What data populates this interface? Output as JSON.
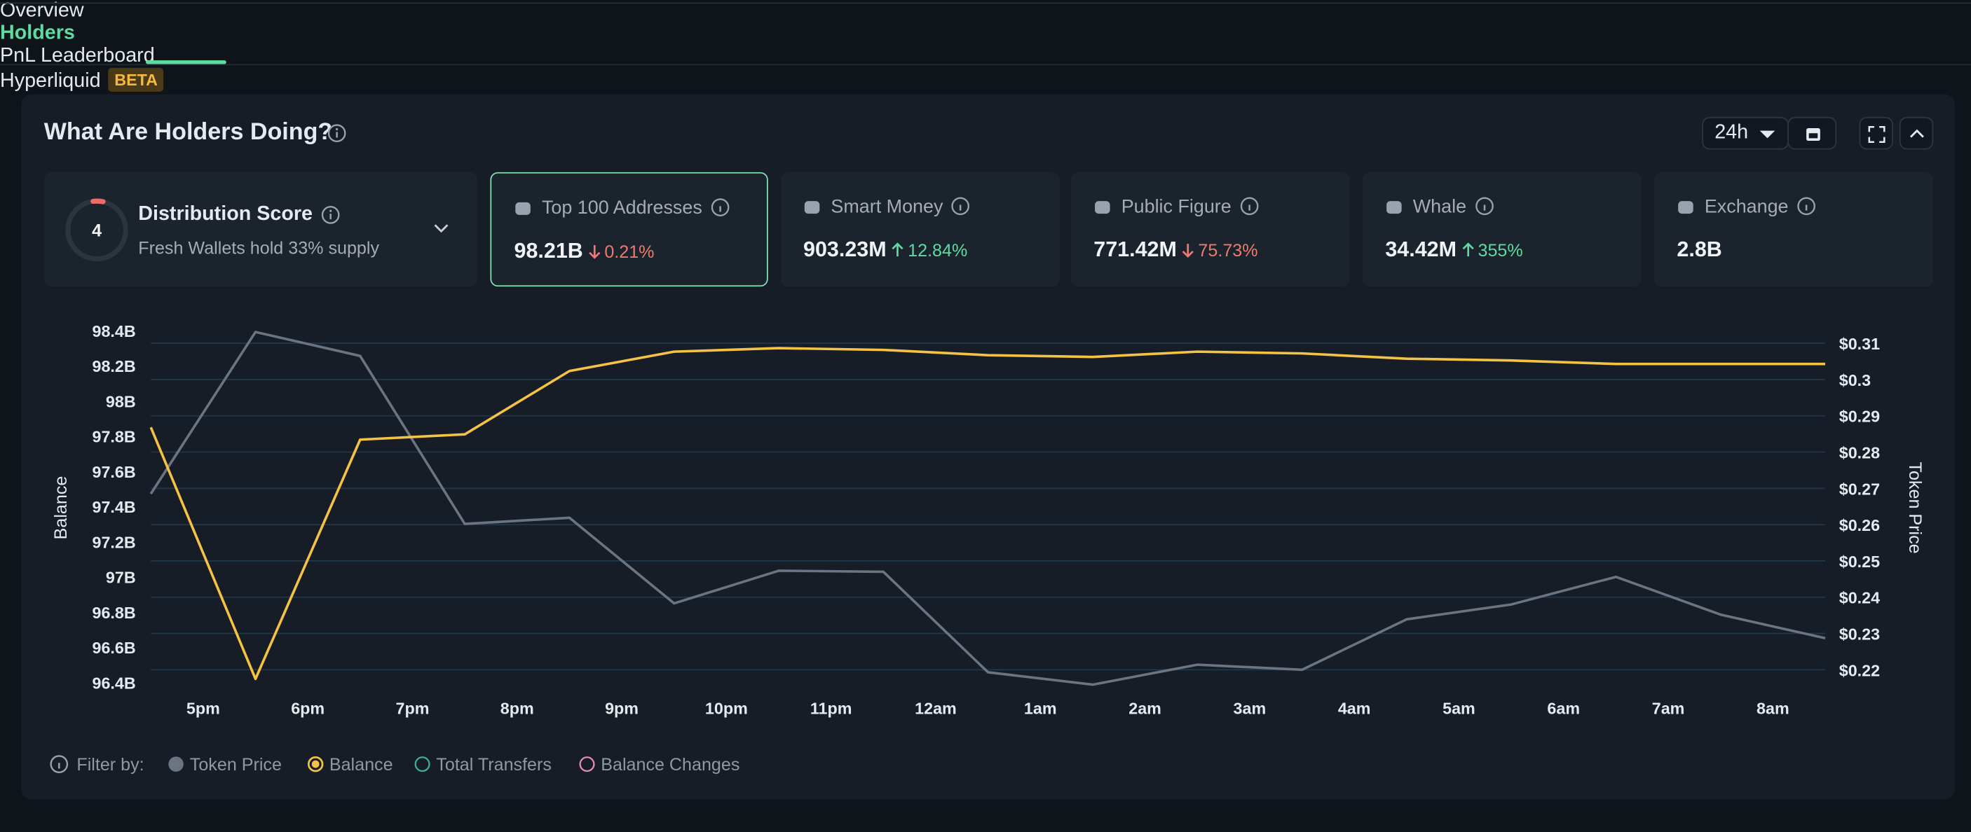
{
  "tabs": [
    "Overview",
    "Holders",
    "PnL Leaderboard",
    "Hyperliquid"
  ],
  "tab_badge": "BETA",
  "active_tab": 1,
  "panel_title": "What Are Holders Doing?",
  "timeframe": "24h",
  "distribution": {
    "score": 4,
    "title": "Distribution Score",
    "subtitle": "Fresh Wallets hold 33% supply"
  },
  "cards": [
    {
      "label": "Top 100 Addresses",
      "value": "98.21B",
      "change": "0.21%",
      "direction": "down",
      "selected": true
    },
    {
      "label": "Smart Money",
      "value": "903.23M",
      "change": "12.84%",
      "direction": "up"
    },
    {
      "label": "Public Figure",
      "value": "771.42M",
      "change": "75.73%",
      "direction": "down"
    },
    {
      "label": "Whale",
      "value": "34.42M",
      "change": "355%",
      "direction": "up"
    },
    {
      "label": "Exchange",
      "value": "2.8B"
    }
  ],
  "filter_label": "Filter by:",
  "chart_data": {
    "type": "line",
    "ylabel": "Balance",
    "y2label": "Token Price",
    "x": [
      0,
      1,
      2,
      3,
      4,
      5,
      6,
      7,
      8,
      9,
      10,
      11,
      12,
      13,
      14,
      15,
      16
    ],
    "xticks": [
      {
        "value": 0.5,
        "label": "5pm"
      },
      {
        "value": 1.5,
        "label": "6pm"
      },
      {
        "value": 2.5,
        "label": "7pm"
      },
      {
        "value": 3.5,
        "label": "8pm"
      },
      {
        "value": 4.5,
        "label": "9pm"
      },
      {
        "value": 5.5,
        "label": "10pm"
      },
      {
        "value": 6.5,
        "label": "11pm"
      },
      {
        "value": 7.5,
        "label": "12am"
      },
      {
        "value": 8.5,
        "label": "1am"
      },
      {
        "value": 9.5,
        "label": "2am"
      },
      {
        "value": 10.5,
        "label": "3am"
      },
      {
        "value": 11.5,
        "label": "4am"
      },
      {
        "value": 12.5,
        "label": "5am"
      },
      {
        "value": 13.5,
        "label": "6am"
      },
      {
        "value": 14.5,
        "label": "7am"
      },
      {
        "value": 15.5,
        "label": "8am"
      }
    ],
    "xlim": [
      0,
      16
    ],
    "ylim": [
      96.4,
      98.4
    ],
    "yticks": [
      {
        "value": 98.4,
        "label": "98.4B"
      },
      {
        "value": 98.2,
        "label": "98.2B"
      },
      {
        "value": 98,
        "label": "98B"
      },
      {
        "value": 97.8,
        "label": "97.8B"
      },
      {
        "value": 97.6,
        "label": "97.6B"
      },
      {
        "value": 97.4,
        "label": "97.4B"
      },
      {
        "value": 97.2,
        "label": "97.2B"
      },
      {
        "value": 97,
        "label": "97B"
      },
      {
        "value": 96.8,
        "label": "96.8B"
      },
      {
        "value": 96.6,
        "label": "96.6B"
      },
      {
        "value": 96.4,
        "label": "96.4B"
      }
    ],
    "y2lim": [
      0.2165,
      0.3135
    ],
    "y2ticks": [
      {
        "value": 0.31,
        "label": "$0.31"
      },
      {
        "value": 0.3,
        "label": "$0.3"
      },
      {
        "value": 0.29,
        "label": "$0.29"
      },
      {
        "value": 0.28,
        "label": "$0.28"
      },
      {
        "value": 0.27,
        "label": "$0.27"
      },
      {
        "value": 0.26,
        "label": "$0.26"
      },
      {
        "value": 0.25,
        "label": "$0.25"
      },
      {
        "value": 0.24,
        "label": "$0.24"
      },
      {
        "value": 0.23,
        "label": "$0.23"
      },
      {
        "value": 0.22,
        "label": "$0.22"
      }
    ],
    "grid": true,
    "series": [
      {
        "name": "Token Price",
        "color": "#6b7480",
        "axis": "y2",
        "values": [
          0.2685,
          0.3131,
          0.3065,
          0.2602,
          0.2619,
          0.2383,
          0.2473,
          0.247,
          0.2193,
          0.2159,
          0.2214,
          0.22,
          0.2339,
          0.238,
          0.2456,
          0.2352,
          0.2287
        ]
      },
      {
        "name": "Balance",
        "color": "#f5c344",
        "values": [
          97.85,
          96.42,
          97.78,
          97.81,
          98.17,
          98.28,
          98.3,
          98.29,
          98.26,
          98.25,
          98.28,
          98.27,
          98.24,
          98.23,
          98.21,
          98.21,
          98.21
        ]
      }
    ],
    "inactive_legend": [
      {
        "name": "Total Transfers",
        "color": "#3fae8c"
      },
      {
        "name": "Balance Changes",
        "color": "#e58ab0"
      }
    ]
  }
}
